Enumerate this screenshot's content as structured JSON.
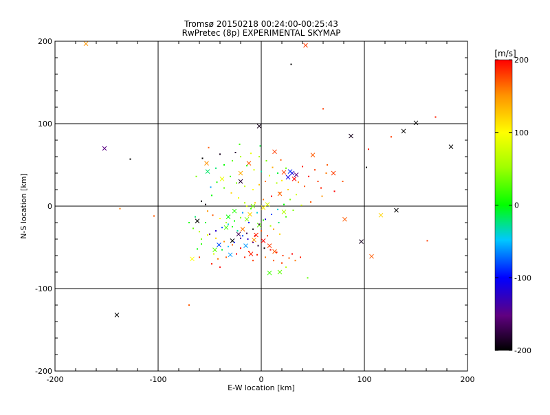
{
  "chart_data": {
    "type": "scatter",
    "title": "Tromsø 20150218 00:24:00-00:25:43",
    "subtitle": "RwPretec (8p) EXPERIMENTAL SKYMAP",
    "xlabel": "E-W location [km]",
    "ylabel": "N-S location [km]",
    "xlim": [
      -200,
      200
    ],
    "ylim": [
      -200,
      200
    ],
    "xticks": [
      "-200",
      "-100",
      "0",
      "100",
      "200"
    ],
    "yticks": [
      "-200",
      "-100",
      "0",
      "100",
      "200"
    ],
    "grid": true,
    "colorbar": {
      "label": "[m/s]",
      "range": [
        -200,
        200
      ],
      "ticks": [
        "-200",
        "-100",
        "0",
        "100",
        "200"
      ]
    },
    "series": [
      {
        "name": "crosses",
        "marker": "x",
        "points": [
          [
            -170,
            197,
            150
          ],
          [
            43,
            195,
            180
          ],
          [
            -152,
            70,
            -150
          ],
          [
            -2,
            97,
            -190
          ],
          [
            87,
            85,
            -190
          ],
          [
            138,
            91,
            -200
          ],
          [
            150,
            101,
            -200
          ],
          [
            184,
            72,
            -200
          ],
          [
            -62,
            -18,
            -200
          ],
          [
            -140,
            -132,
            -200
          ],
          [
            97,
            -43,
            -190
          ],
          [
            131,
            -5,
            -200
          ],
          [
            107,
            -61,
            170
          ],
          [
            116,
            -11,
            120
          ],
          [
            81,
            -16,
            170
          ],
          [
            -20,
            40,
            140
          ],
          [
            -20,
            30,
            -180
          ],
          [
            30,
            40,
            -120
          ],
          [
            26,
            35,
            -110
          ],
          [
            34,
            38,
            -150
          ],
          [
            28,
            42,
            -90
          ],
          [
            32,
            33,
            200
          ],
          [
            22,
            41,
            180
          ],
          [
            -52,
            42,
            -20
          ],
          [
            -53,
            52,
            150
          ],
          [
            -67,
            -64,
            100
          ],
          [
            -22,
            -34,
            -170
          ],
          [
            -15,
            -48,
            -60
          ],
          [
            -5,
            -35,
            190
          ],
          [
            -7,
            -41,
            150
          ],
          [
            2,
            -42,
            200
          ],
          [
            8,
            -48,
            180
          ],
          [
            13,
            -55,
            170
          ],
          [
            18,
            -80,
            30
          ],
          [
            8,
            -81,
            20
          ],
          [
            2,
            -2,
            110
          ],
          [
            6,
            2,
            80
          ],
          [
            -14,
            -16,
            40
          ],
          [
            -26,
            -6,
            10
          ],
          [
            -34,
            -26,
            20
          ],
          [
            -41,
            -47,
            -80
          ],
          [
            -8,
            0,
            40
          ],
          [
            -28,
            -42,
            -200
          ],
          [
            -18,
            -28,
            160
          ],
          [
            -11,
            -10,
            120
          ],
          [
            13,
            66,
            180
          ],
          [
            -12,
            52,
            170
          ],
          [
            50,
            62,
            170
          ],
          [
            70,
            40,
            180
          ],
          [
            -38,
            33,
            90
          ],
          [
            -32,
            -13,
            0
          ],
          [
            -10,
            -58,
            190
          ],
          [
            -45,
            -53,
            30
          ],
          [
            -30,
            -59,
            -60
          ],
          [
            22,
            -7,
            60
          ],
          [
            -2,
            -23,
            30
          ],
          [
            18,
            15,
            170
          ]
        ]
      },
      {
        "name": "dots",
        "marker": "dot",
        "points": [
          [
            29,
            172,
            -200
          ],
          [
            60,
            118,
            180
          ],
          [
            169,
            108,
            190
          ],
          [
            -127,
            57,
            -200
          ],
          [
            -137,
            -3,
            160
          ],
          [
            -104,
            -12,
            170
          ],
          [
            -70,
            -120,
            170
          ],
          [
            -57,
            58,
            -200
          ],
          [
            -40,
            63,
            -190
          ],
          [
            -25,
            65,
            -180
          ],
          [
            -51,
            71,
            170
          ],
          [
            102,
            47,
            -200
          ],
          [
            104,
            69,
            190
          ],
          [
            126,
            84,
            180
          ],
          [
            161,
            -42,
            180
          ],
          [
            45,
            -87,
            30
          ],
          [
            -58,
            6,
            -200
          ],
          [
            -54,
            2,
            -190
          ],
          [
            -63,
            36,
            40
          ],
          [
            -49,
            23,
            -60
          ],
          [
            -21,
            75,
            20
          ],
          [
            -1,
            73,
            -10
          ],
          [
            -2,
            60,
            60
          ],
          [
            5,
            55,
            40
          ],
          [
            11,
            47,
            140
          ],
          [
            19,
            56,
            170
          ],
          [
            -14,
            49,
            10
          ],
          [
            -7,
            44,
            80
          ],
          [
            0,
            42,
            -30
          ],
          [
            8,
            37,
            90
          ],
          [
            15,
            28,
            60
          ],
          [
            20,
            31,
            110
          ],
          [
            36,
            29,
            150
          ],
          [
            42,
            24,
            170
          ],
          [
            55,
            30,
            180
          ],
          [
            63,
            40,
            160
          ],
          [
            79,
            30,
            170
          ],
          [
            71,
            18,
            200
          ],
          [
            59,
            12,
            150
          ],
          [
            48,
            5,
            170
          ],
          [
            39,
            1,
            80
          ],
          [
            31,
            -5,
            40
          ],
          [
            24,
            -13,
            20
          ],
          [
            17,
            -20,
            -20
          ],
          [
            9,
            -24,
            60
          ],
          [
            2,
            -17,
            10
          ],
          [
            -4,
            -8,
            -40
          ],
          [
            -10,
            -3,
            20
          ],
          [
            -16,
            4,
            60
          ],
          [
            -22,
            10,
            90
          ],
          [
            -29,
            16,
            120
          ],
          [
            -36,
            22,
            30
          ],
          [
            -43,
            29,
            10
          ],
          [
            -48,
            13,
            0
          ],
          [
            -52,
            -6,
            150
          ],
          [
            -47,
            -11,
            170
          ],
          [
            -40,
            -15,
            100
          ],
          [
            -34,
            -20,
            60
          ],
          [
            -28,
            -25,
            10
          ],
          [
            -23,
            -30,
            -30
          ],
          [
            -18,
            -36,
            -80
          ],
          [
            -13,
            -40,
            -120
          ],
          [
            -8,
            -44,
            -150
          ],
          [
            -3,
            -48,
            -180
          ],
          [
            3,
            -51,
            -200
          ],
          [
            9,
            -53,
            200
          ],
          [
            15,
            -56,
            190
          ],
          [
            21,
            -60,
            180
          ],
          [
            27,
            -63,
            170
          ],
          [
            33,
            -66,
            160
          ],
          [
            20,
            -69,
            180
          ],
          [
            12,
            -66,
            170
          ],
          [
            4,
            -62,
            160
          ],
          [
            -4,
            -59,
            190
          ],
          [
            -12,
            -55,
            180
          ],
          [
            -20,
            -51,
            200
          ],
          [
            -28,
            -47,
            170
          ],
          [
            -36,
            -43,
            150
          ],
          [
            -44,
            -39,
            120
          ],
          [
            -52,
            -35,
            90
          ],
          [
            -60,
            -31,
            60
          ],
          [
            -66,
            -27,
            30
          ],
          [
            -70,
            -20,
            10
          ],
          [
            -64,
            -13,
            -20
          ],
          [
            -58,
            -40,
            40
          ],
          [
            -46,
            -58,
            80
          ],
          [
            -38,
            -53,
            -10
          ],
          [
            -32,
            -49,
            -50
          ],
          [
            -26,
            -44,
            -90
          ],
          [
            -20,
            -39,
            -130
          ],
          [
            -14,
            -33,
            -170
          ],
          [
            -8,
            -28,
            -200
          ],
          [
            -2,
            -22,
            -160
          ],
          [
            4,
            -16,
            -120
          ],
          [
            10,
            -10,
            -80
          ],
          [
            16,
            -4,
            -40
          ],
          [
            22,
            2,
            0
          ],
          [
            28,
            8,
            40
          ],
          [
            34,
            14,
            80
          ],
          [
            26,
            20,
            120
          ],
          [
            18,
            16,
            160
          ],
          [
            10,
            12,
            200
          ],
          [
            2,
            8,
            160
          ],
          [
            -6,
            4,
            120
          ],
          [
            -14,
            0,
            80
          ],
          [
            -20,
            -14,
            40
          ],
          [
            -26,
            -18,
            0
          ],
          [
            -32,
            -22,
            -40
          ],
          [
            -38,
            -26,
            -80
          ],
          [
            -44,
            -30,
            -120
          ],
          [
            -50,
            -34,
            -160
          ],
          [
            -24,
            -58,
            200
          ],
          [
            -16,
            -62,
            190
          ],
          [
            -8,
            -66,
            180
          ],
          [
            -34,
            -62,
            170
          ],
          [
            -42,
            -64,
            160
          ],
          [
            30,
            -58,
            200
          ],
          [
            38,
            -62,
            190
          ],
          [
            24,
            -74,
            60
          ],
          [
            -58,
            -46,
            10
          ],
          [
            -62,
            -52,
            0
          ],
          [
            -54,
            -20,
            -10
          ],
          [
            -8,
            20,
            100
          ],
          [
            -2,
            26,
            130
          ],
          [
            4,
            30,
            160
          ],
          [
            -16,
            24,
            70
          ],
          [
            -24,
            28,
            40
          ],
          [
            -30,
            36,
            20
          ],
          [
            -44,
            46,
            -20
          ],
          [
            -36,
            50,
            0
          ],
          [
            -28,
            55,
            30
          ],
          [
            -20,
            60,
            60
          ],
          [
            -10,
            64,
            90
          ],
          [
            40,
            48,
            190
          ],
          [
            52,
            44,
            180
          ],
          [
            64,
            50,
            170
          ],
          [
            46,
            36,
            200
          ],
          [
            58,
            22,
            190
          ],
          [
            16,
            40,
            -10
          ],
          [
            24,
            46,
            30
          ],
          [
            -6,
            -36,
            200
          ],
          [
            0,
            -30,
            170
          ],
          [
            6,
            -36,
            180
          ],
          [
            -12,
            -20,
            -100
          ],
          [
            -18,
            -8,
            -60
          ],
          [
            12,
            -28,
            150
          ],
          [
            18,
            -34,
            120
          ],
          [
            -60,
            -62,
            180
          ],
          [
            -48,
            -70,
            190
          ],
          [
            -40,
            -74,
            200
          ]
        ]
      }
    ]
  }
}
